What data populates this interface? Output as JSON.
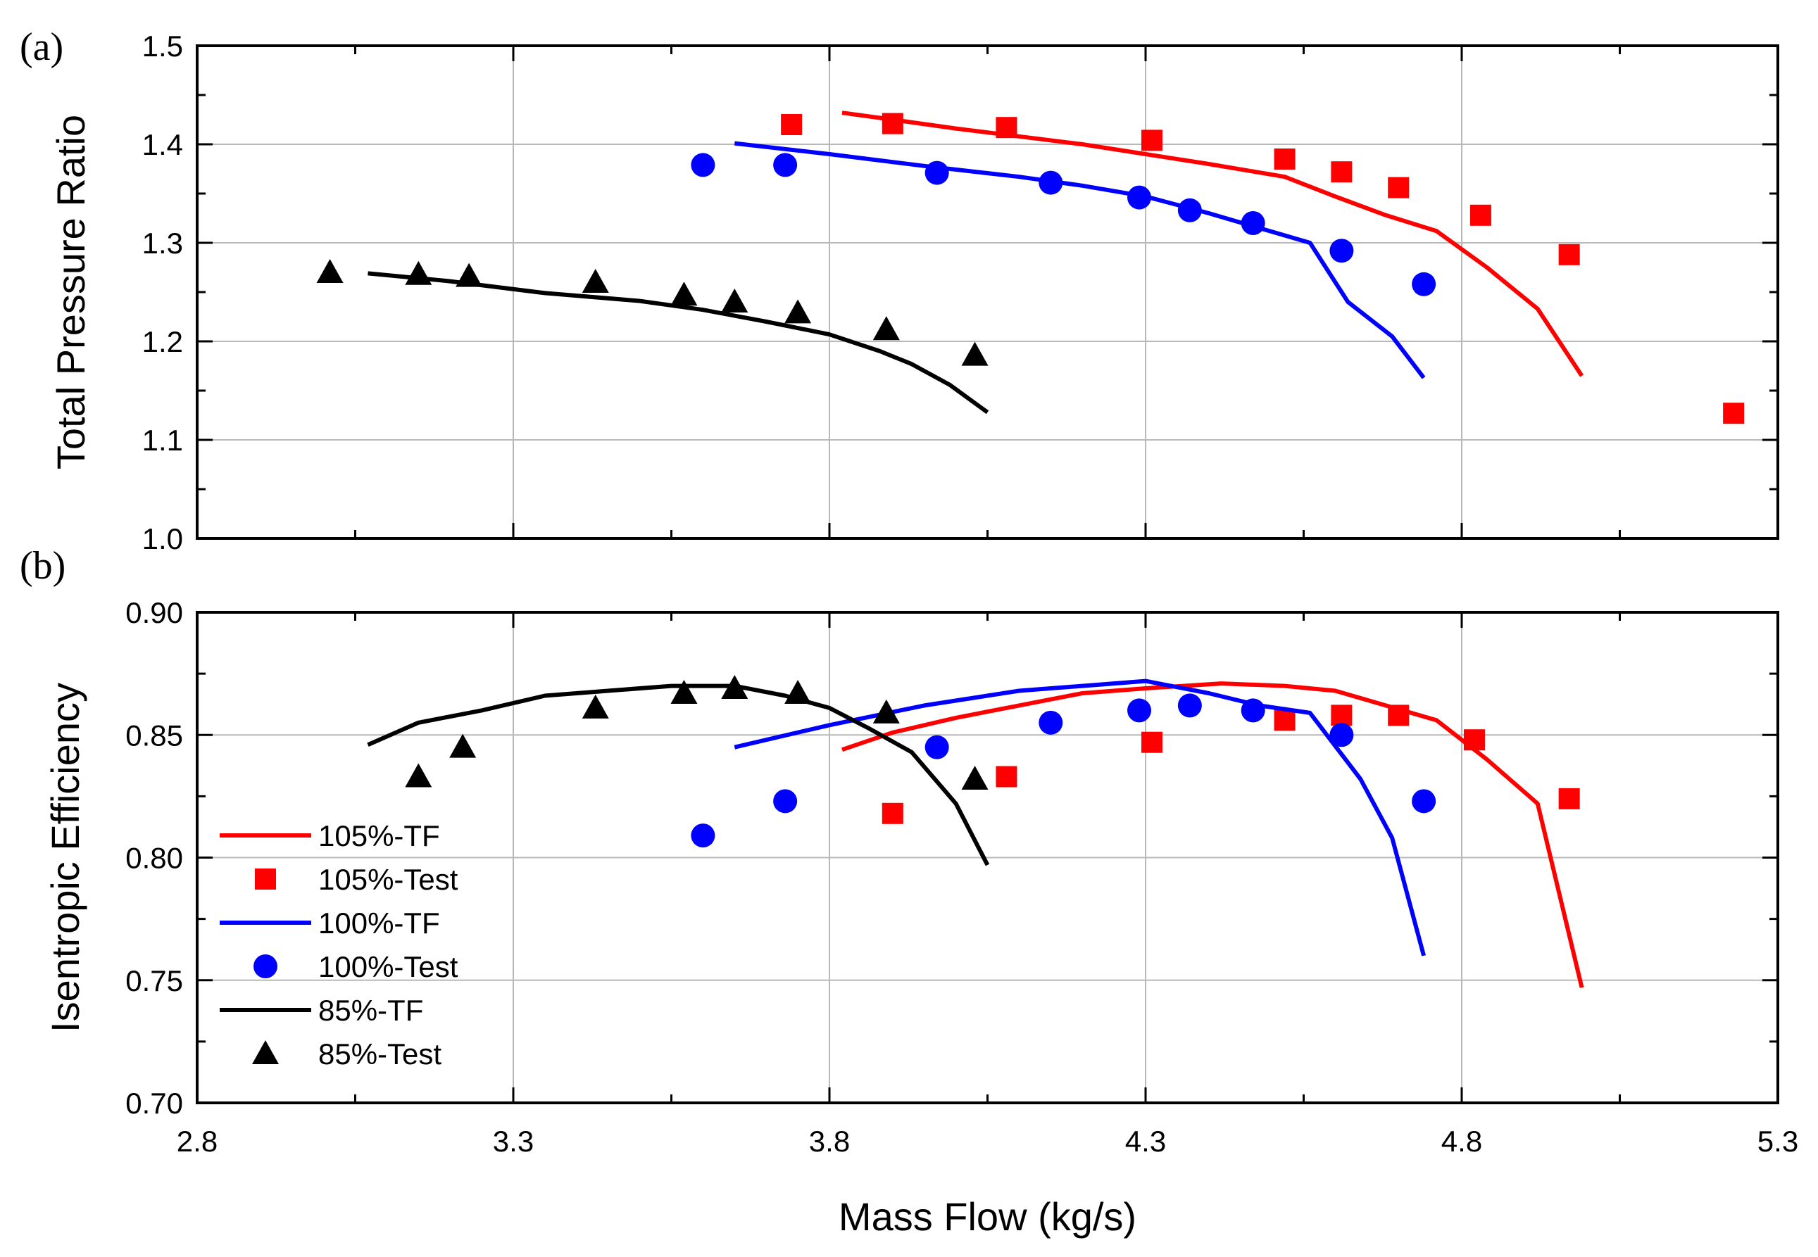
{
  "figure": {
    "xlabel": "Mass Flow (kg/s)",
    "x_ticks": [
      "2.8",
      "3.3",
      "3.8",
      "4.3",
      "4.8",
      "5.3"
    ]
  },
  "chart_data": [
    {
      "type": "line",
      "panel_label": "(a)",
      "xlabel": "Mass Flow (kg/s)",
      "ylabel": "Total Pressure Ratio",
      "xlim": [
        2.8,
        5.3
      ],
      "ylim": [
        1.0,
        1.5
      ],
      "y_ticks": [
        "1.0",
        "1.1",
        "1.2",
        "1.3",
        "1.4",
        "1.5"
      ],
      "grid": true,
      "series": [
        {
          "name": "105%-TF",
          "kind": "line",
          "color": "#ff0000",
          "x": [
            3.82,
            3.9,
            4.0,
            4.1,
            4.2,
            4.3,
            4.4,
            4.52,
            4.6,
            4.68,
            4.76,
            4.84,
            4.92,
            4.99
          ],
          "y": [
            1.432,
            1.425,
            1.416,
            1.408,
            1.4,
            1.39,
            1.38,
            1.367,
            1.347,
            1.328,
            1.312,
            1.275,
            1.233,
            1.165
          ]
        },
        {
          "name": "105%-Test",
          "kind": "square",
          "color": "#ff0000",
          "x": [
            3.74,
            3.9,
            4.08,
            4.31,
            4.52,
            4.61,
            4.7,
            4.83,
            4.97,
            5.23
          ],
          "y": [
            1.42,
            1.421,
            1.417,
            1.404,
            1.385,
            1.372,
            1.356,
            1.328,
            1.288,
            1.127
          ]
        },
        {
          "name": "100%-TF",
          "kind": "line",
          "color": "#0000ff",
          "x": [
            3.65,
            3.8,
            3.95,
            4.1,
            4.2,
            4.3,
            4.4,
            4.48,
            4.56,
            4.62,
            4.69,
            4.74
          ],
          "y": [
            1.401,
            1.39,
            1.378,
            1.367,
            1.358,
            1.347,
            1.33,
            1.315,
            1.3,
            1.24,
            1.205,
            1.163
          ]
        },
        {
          "name": "100%-Test",
          "kind": "circle",
          "color": "#0000ff",
          "x": [
            3.6,
            3.73,
            3.97,
            4.15,
            4.29,
            4.37,
            4.47,
            4.61,
            4.74
          ],
          "y": [
            1.379,
            1.379,
            1.371,
            1.361,
            1.346,
            1.333,
            1.32,
            1.292,
            1.258
          ]
        },
        {
          "name": "85%-TF",
          "kind": "line",
          "color": "#000000",
          "x": [
            3.07,
            3.2,
            3.35,
            3.5,
            3.6,
            3.7,
            3.8,
            3.88,
            3.93,
            3.99,
            4.05
          ],
          "y": [
            1.269,
            1.261,
            1.249,
            1.241,
            1.232,
            1.22,
            1.207,
            1.19,
            1.177,
            1.156,
            1.128
          ]
        },
        {
          "name": "85%-Test",
          "kind": "triangle",
          "color": "#000000",
          "x": [
            3.01,
            3.15,
            3.23,
            3.43,
            3.57,
            3.65,
            3.75,
            3.89,
            4.03
          ],
          "y": [
            1.27,
            1.268,
            1.266,
            1.26,
            1.247,
            1.24,
            1.229,
            1.212,
            1.186
          ]
        }
      ]
    },
    {
      "type": "line",
      "panel_label": "(b)",
      "xlabel": "Mass Flow (kg/s)",
      "ylabel": "Isentropic Efficiency",
      "xlim": [
        2.8,
        5.3
      ],
      "ylim": [
        0.7,
        0.9
      ],
      "y_ticks": [
        "0.70",
        "0.75",
        "0.80",
        "0.85",
        "0.90"
      ],
      "grid": true,
      "legend_position": "bottom-left",
      "series": [
        {
          "name": "105%-TF",
          "kind": "line",
          "color": "#ff0000",
          "x": [
            3.82,
            3.9,
            4.0,
            4.1,
            4.2,
            4.3,
            4.42,
            4.52,
            4.6,
            4.68,
            4.76,
            4.84,
            4.92,
            4.99
          ],
          "y": [
            0.844,
            0.851,
            0.857,
            0.862,
            0.867,
            0.869,
            0.871,
            0.87,
            0.868,
            0.862,
            0.856,
            0.84,
            0.822,
            0.747
          ]
        },
        {
          "name": "105%-Test",
          "kind": "square",
          "color": "#ff0000",
          "x": [
            3.9,
            4.08,
            4.31,
            4.52,
            4.61,
            4.7,
            4.82,
            4.97
          ],
          "y": [
            0.818,
            0.833,
            0.847,
            0.856,
            0.858,
            0.858,
            0.848,
            0.824
          ]
        },
        {
          "name": "100%-TF",
          "kind": "line",
          "color": "#0000ff",
          "x": [
            3.65,
            3.8,
            3.95,
            4.1,
            4.2,
            4.3,
            4.4,
            4.48,
            4.56,
            4.64,
            4.69,
            4.74
          ],
          "y": [
            0.845,
            0.854,
            0.862,
            0.868,
            0.87,
            0.872,
            0.867,
            0.862,
            0.859,
            0.832,
            0.808,
            0.76
          ]
        },
        {
          "name": "100%-Test",
          "kind": "circle",
          "color": "#0000ff",
          "x": [
            3.6,
            3.73,
            3.97,
            4.15,
            4.29,
            4.37,
            4.47,
            4.61,
            4.74
          ],
          "y": [
            0.809,
            0.823,
            0.845,
            0.855,
            0.86,
            0.862,
            0.86,
            0.85,
            0.823
          ]
        },
        {
          "name": "85%-TF",
          "kind": "line",
          "color": "#000000",
          "x": [
            3.07,
            3.15,
            3.25,
            3.35,
            3.45,
            3.55,
            3.65,
            3.73,
            3.8,
            3.86,
            3.93,
            4.0,
            4.05
          ],
          "y": [
            0.846,
            0.855,
            0.86,
            0.866,
            0.868,
            0.87,
            0.87,
            0.866,
            0.861,
            0.853,
            0.843,
            0.822,
            0.797
          ]
        },
        {
          "name": "85%-Test",
          "kind": "triangle",
          "color": "#000000",
          "x": [
            3.15,
            3.22,
            3.43,
            3.57,
            3.65,
            3.75,
            3.89,
            4.03
          ],
          "y": [
            0.833,
            0.845,
            0.861,
            0.867,
            0.869,
            0.867,
            0.859,
            0.832
          ]
        }
      ]
    }
  ]
}
